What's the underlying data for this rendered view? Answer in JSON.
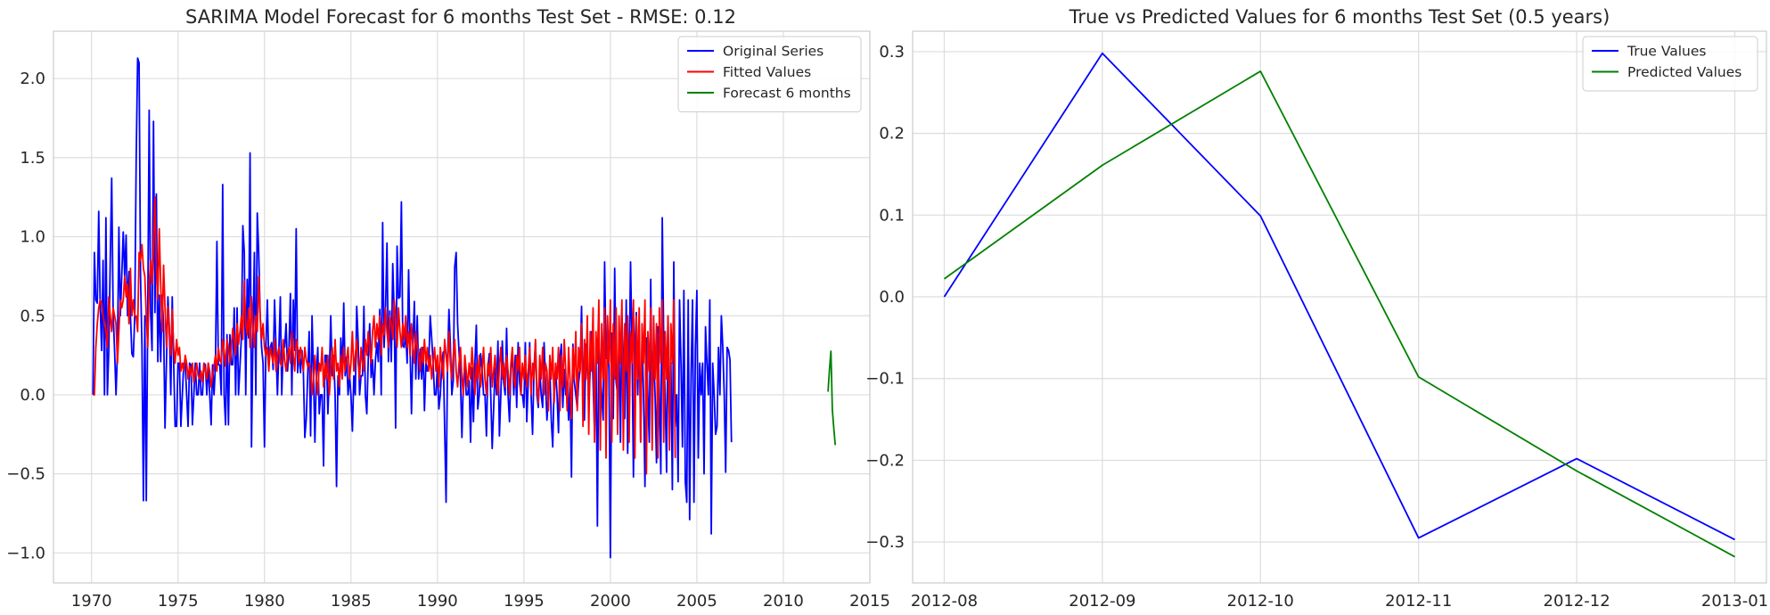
{
  "chart_data": [
    {
      "type": "line",
      "title": "SARIMA Model Forecast for 6 months Test Set - RMSE: 0.12",
      "xlabel": "",
      "ylabel": "",
      "xlim": [
        1967.8,
        2015.0
      ],
      "ylim": [
        -1.19,
        2.3
      ],
      "x_ticks": [
        1970,
        1975,
        1980,
        1985,
        1990,
        1995,
        2000,
        2005,
        2010,
        2015
      ],
      "y_ticks": [
        -1.0,
        -0.5,
        0.0,
        0.5,
        1.0,
        1.5,
        2.0
      ],
      "y_tick_labels": [
        "−1.0",
        "−0.5",
        "0.0",
        "0.5",
        "1.0",
        "1.5",
        "2.0"
      ],
      "grid": true,
      "legend_position": "top-right",
      "series": [
        {
          "name": "Original Series",
          "color": "#0000ff",
          "x_start": 1970.083,
          "x_step": 0.08333,
          "values": [
            0.0,
            0.9,
            0.6,
            0.58,
            1.16,
            0.58,
            0.28,
            0.85,
            0.0,
            1.12,
            0.0,
            0.28,
            0.85,
            1.37,
            0.52,
            0.28,
            0.0,
            0.28,
            1.06,
            0.5,
            0.76,
            1.03,
            0.75,
            1.01,
            0.5,
            0.78,
            0.5,
            0.26,
            0.24,
            0.5,
            1.5,
            2.13,
            2.1,
            0.75,
            0.3,
            -0.67,
            0.5,
            -0.67,
            0.5,
            1.8,
            0.52,
            0.28,
            1.73,
            0.52,
            1.27,
            0.21,
            0.63,
            0.21,
            0.63,
            0.44,
            -0.21,
            0.21,
            0.62,
            0.42,
            0.0,
            0.62,
            0.2,
            -0.2,
            -0.2,
            0.2,
            0.2,
            -0.2,
            0.0,
            0.2,
            0.2,
            0.0,
            -0.2,
            0.2,
            0.19,
            -0.19,
            0.0,
            0.2,
            0.0,
            0.0,
            0.2,
            0.0,
            0.0,
            0.2,
            0.19,
            0.0,
            0.2,
            0.0,
            -0.19,
            0.19,
            0.0,
            0.2,
            0.97,
            0.19,
            0.19,
            0.0,
            1.33,
            0.0,
            -0.19,
            0.38,
            -0.19,
            0.38,
            0.19,
            0.19,
            0.55,
            0.0,
            0.55,
            0.0,
            0.18,
            0.37,
            1.07,
            0.9,
            0.0,
            0.73,
            0.36,
            1.53,
            -0.33,
            0.36,
            0.9,
            0.0,
            1.15,
            0.9,
            0.5,
            0.3,
            0.2,
            -0.33,
            0.3,
            0.6,
            0.2,
            0.3,
            0.33,
            0.16,
            0.6,
            0.3,
            0.0,
            0.29,
            0.62,
            0.0,
            0.3,
            0.3,
            0.45,
            0.15,
            0.3,
            0.64,
            0.0,
            0.6,
            0.28,
            1.05,
            0.14,
            0.28,
            0.14,
            0.28,
            0.14,
            -0.27,
            -0.15,
            0.12,
            0.4,
            -0.26,
            0.5,
            0.13,
            -0.3,
            0.13,
            0.3,
            -0.12,
            0.0,
            0.0,
            -0.45,
            0.25,
            0.25,
            -0.12,
            0.12,
            0.5,
            0.12,
            0.25,
            0.0,
            -0.58,
            0.12,
            0.0,
            0.36,
            0.12,
            0.58,
            0.12,
            0.24,
            0.0,
            0.12,
            0.0,
            -0.23,
            0.12,
            0.0,
            0.56,
            0.34,
            0.0,
            0.12,
            0.12,
            0.56,
            0.0,
            -0.12,
            0.22,
            0.45,
            0.11,
            0.22,
            0.0,
            0.22,
            0.33,
            0.21,
            0.54,
            0.0,
            1.09,
            0.3,
            0.54,
            0.96,
            0.21,
            0.53,
            0.21,
            0.83,
            0.52,
            -0.21,
            0.94,
            0.61,
            0.62,
            1.22,
            0.31,
            0.3,
            0.4,
            0.2,
            0.79,
            0.3,
            -0.12,
            0.32,
            0.59,
            0.1,
            0.5,
            0.1,
            0.29,
            0.1,
            0.3,
            -0.1,
            0.2,
            0.15,
            0.2,
            0.5,
            0.36,
            0.2,
            0.0,
            0.0,
            0.18,
            -0.09,
            0.0,
            0.18,
            0.27,
            -0.2,
            -0.68,
            0.2,
            0.54,
            0.31,
            0.0,
            0.09,
            0.81,
            0.9,
            0.45,
            0.27,
            0.09,
            -0.27,
            0.09,
            0.18,
            0.0,
            0.0,
            0.09,
            -0.3,
            0.17,
            -0.17,
            0.2,
            0.44,
            -0.09,
            0.0,
            0.26,
            0.17,
            0.0,
            0.0,
            -0.26,
            0.17,
            0.26,
            0.0,
            -0.34,
            -0.09,
            0.17,
            0.0,
            0.34,
            -0.26,
            0.0,
            0.34,
            0.08,
            0.0,
            0.42,
            0.0,
            -0.17,
            0.17,
            0.25,
            0.0,
            0.25,
            -0.08,
            0.33,
            0.08,
            0.0,
            0.0,
            -0.08,
            0.33,
            -0.17,
            0.08,
            0.33,
            0.0,
            -0.25,
            0.16,
            0.33,
            0.0,
            -0.08,
            0.16,
            0.0,
            -0.08,
            0.33,
            0.08,
            -0.16,
            0.0,
            0.16,
            -0.16,
            -0.33,
            0.08,
            0.16,
            0.0,
            -0.24,
            0.24,
            0.32,
            -0.08,
            0.16,
            0.0,
            0.08,
            -0.16,
            0.08,
            -0.52,
            0.32,
            0.08,
            0.0,
            -0.08,
            0.08,
            0.16,
            0.56,
            0.0,
            -0.16,
            0.32,
            0.24,
            -0.08,
            0.16,
            0.4,
            0.08,
            -0.24,
            0.31,
            -0.83,
            0.39,
            0.16,
            0.0,
            -0.16,
            0.84,
            0.23,
            0.39,
            0.16,
            -1.03,
            0.39,
            -0.15,
            0.8,
            0.08,
            0.0,
            0.3,
            -0.3,
            0.5,
            0.23,
            -0.15,
            0.6,
            -0.37,
            0.15,
            0.84,
            0.3,
            -0.52,
            0.3,
            0.52,
            0.0,
            0.44,
            -0.29,
            0.36,
            0.0,
            -0.58,
            0.36,
            0.0,
            -0.3,
            0.73,
            -0.14,
            0.29,
            0.0,
            -0.43,
            0.43,
            0.0,
            -0.5,
            1.12,
            0.35,
            0.0,
            -0.49,
            0.49,
            -0.21,
            0.2,
            -0.6,
            0.84,
            -0.2,
            0.0,
            -0.55,
            0.6,
            0.2,
            -0.33,
            0.66,
            -0.55,
            -0.68,
            0.6,
            -0.79,
            0.13,
            0.6,
            -0.68,
            0.3,
            0.66,
            -0.4,
            0.2,
            0.0,
            0.2,
            -0.5,
            0.43,
            0.2,
            0.0,
            0.6,
            -0.88,
            0.2,
            0.0,
            -0.25,
            -0.2,
            0.3,
            0.0,
            0.5,
            0.3,
            0.0,
            -0.49,
            0.3,
            0.28,
            0.22,
            -0.3
          ]
        },
        {
          "name": "Fitted Values",
          "color": "#ff0000",
          "x_start": 1970.083,
          "x_step": 0.08333,
          "values": [
            0.0,
            0.0,
            0.3,
            0.45,
            0.55,
            0.6,
            0.58,
            0.5,
            0.45,
            0.4,
            0.3,
            0.62,
            0.5,
            0.4,
            0.55,
            0.5,
            0.45,
            0.2,
            0.4,
            0.6,
            0.55,
            0.6,
            0.75,
            0.62,
            0.7,
            0.45,
            0.8,
            0.5,
            0.6,
            0.5,
            0.5,
            0.4,
            0.9,
            0.85,
            0.95,
            0.8,
            0.75,
            0.5,
            0.3,
            0.7,
            0.85,
            0.7,
            0.95,
            1.25,
            0.8,
            0.6,
            1.05,
            0.7,
            0.4,
            0.82,
            0.55,
            0.3,
            0.56,
            0.4,
            0.25,
            0.54,
            0.3,
            0.2,
            0.35,
            0.25,
            0.3,
            0.15,
            0.2,
            0.15,
            0.25,
            0.2,
            0.1,
            0.18,
            0.12,
            0.2,
            0.08,
            0.14,
            0.2,
            0.12,
            0.1,
            0.15,
            0.08,
            0.2,
            0.15,
            0.1,
            0.2,
            0.15,
            0.05,
            0.12,
            0.18,
            0.25,
            0.15,
            0.3,
            0.22,
            0.2,
            0.35,
            0.28,
            0.18,
            0.35,
            0.3,
            0.2,
            0.3,
            0.42,
            0.35,
            0.25,
            0.45,
            0.32,
            0.4,
            0.5,
            0.35,
            0.72,
            0.45,
            0.38,
            0.55,
            0.3,
            0.62,
            0.42,
            0.3,
            0.5,
            0.4,
            0.75,
            0.5,
            0.35,
            0.45,
            0.3,
            0.25,
            0.3,
            0.15,
            0.3,
            0.25,
            0.2,
            0.35,
            0.15,
            0.25,
            0.3,
            0.2,
            0.18,
            0.35,
            0.22,
            0.15,
            0.25,
            0.3,
            0.2,
            0.4,
            0.25,
            0.15,
            0.35,
            0.3,
            0.2,
            0.3,
            0.25,
            0.15,
            0.3,
            0.22,
            0.18,
            0.2,
            0.15,
            0.0,
            0.1,
            0.25,
            0.1,
            0.0,
            0.2,
            0.15,
            0.3,
            0.05,
            0.2,
            0.1,
            0.25,
            0.0,
            0.15,
            0.3,
            0.1,
            0.35,
            0.15,
            0.2,
            0.05,
            0.25,
            0.1,
            0.3,
            0.15,
            0.22,
            0.3,
            0.1,
            0.2,
            0.4,
            0.15,
            0.25,
            0.35,
            0.2,
            0.1,
            0.3,
            0.2,
            0.15,
            0.35,
            0.25,
            0.4,
            0.3,
            0.2,
            0.4,
            0.5,
            0.3,
            0.45,
            0.35,
            0.5,
            0.25,
            0.45,
            0.38,
            0.55,
            0.4,
            0.3,
            0.5,
            0.45,
            0.35,
            0.6,
            0.48,
            0.3,
            0.55,
            0.4,
            0.3,
            0.45,
            0.35,
            0.5,
            0.3,
            0.4,
            0.25,
            0.45,
            0.3,
            0.2,
            0.4,
            0.3,
            0.25,
            0.15,
            0.3,
            0.2,
            0.35,
            0.2,
            0.3,
            0.15,
            0.25,
            0.1,
            0.2,
            0.3,
            0.15,
            0.25,
            0.05,
            0.3,
            0.2,
            0.1,
            0.35,
            0.25,
            0.15,
            0.4,
            0.2,
            0.1,
            0.25,
            0.35,
            0.15,
            0.05,
            0.2,
            0.3,
            0.1,
            0.0,
            0.25,
            0.15,
            0.05,
            0.2,
            0.1,
            0.3,
            0.15,
            0.0,
            0.2,
            0.1,
            0.25,
            0.05,
            0.15,
            0.3,
            0.1,
            0.0,
            0.2,
            0.12,
            0.3,
            0.05,
            0.15,
            0.25,
            0.1,
            0.0,
            0.18,
            0.3,
            0.1,
            0.2,
            0.05,
            0.25,
            0.15,
            0.0,
            0.2,
            0.3,
            0.1,
            0.05,
            0.25,
            0.15,
            0.3,
            0.0,
            0.2,
            0.1,
            0.25,
            0.05,
            0.15,
            0.3,
            0.0,
            0.2,
            0.1,
            0.35,
            0.05,
            -0.05,
            0.25,
            0.1,
            0.3,
            0.0,
            0.2,
            0.15,
            -0.1,
            0.25,
            0.1,
            0.3,
            -0.05,
            0.2,
            0.1,
            0.3,
            -0.1,
            0.25,
            0.05,
            0.35,
            0.15,
            -0.1,
            0.3,
            0.1,
            -0.15,
            0.3,
            0.1,
            0.4,
            -0.1,
            0.3,
            0.15,
            0.45,
            -0.2,
            0.35,
            0.1,
            0.5,
            -0.25,
            0.4,
            0.15,
            0.55,
            -0.3,
            0.4,
            0.2,
            0.6,
            -0.35,
            0.45,
            0.1,
            0.55,
            -0.4,
            0.5,
            0.2,
            0.6,
            -0.3,
            0.45,
            0.1,
            0.55,
            -0.25,
            0.5,
            0.2,
            0.6,
            -0.35,
            0.45,
            0.15,
            0.5,
            -0.3,
            0.4,
            0.2,
            0.6,
            -0.4,
            0.5,
            0.1,
            0.55,
            -0.3,
            0.45,
            0.2,
            0.6,
            -0.5,
            0.4,
            0.15,
            0.55,
            -0.35,
            0.5,
            0.1,
            0.45,
            -0.4,
            0.55,
            0.2,
            0.6,
            -0.3,
            0.4,
            0.1,
            0.5,
            -0.35,
            0.45,
            0.2,
            0.6,
            -0.4
          ]
        },
        {
          "name": "Forecast 6 months",
          "color": "#008000",
          "x": [
            2012.583,
            2012.667,
            2012.75,
            2012.833,
            2012.917,
            2013.0
          ],
          "values": [
            0.02,
            0.16,
            0.276,
            -0.098,
            -0.213,
            -0.318
          ]
        }
      ]
    },
    {
      "type": "line",
      "title": "True vs Predicted Values for 6 months Test Set (0.5 years)",
      "xlabel": "",
      "ylabel": "",
      "categories": [
        "2012-08",
        "2012-09",
        "2012-10",
        "2012-11",
        "2012-12",
        "2013-01"
      ],
      "ylim": [
        -0.35,
        0.325
      ],
      "y_ticks": [
        -0.3,
        -0.2,
        -0.1,
        0.0,
        0.1,
        0.2,
        0.3
      ],
      "y_tick_labels": [
        "−0.3",
        "−0.2",
        "−0.1",
        "0.0",
        "0.1",
        "0.2",
        "0.3"
      ],
      "grid": true,
      "legend_position": "top-right",
      "series": [
        {
          "name": "True Values",
          "color": "#0000ff",
          "values": [
            0.0,
            0.298,
            0.099,
            -0.295,
            -0.198,
            -0.297
          ]
        },
        {
          "name": "Predicted Values",
          "color": "#008000",
          "values": [
            0.022,
            0.161,
            0.276,
            -0.098,
            -0.213,
            -0.318
          ]
        }
      ]
    }
  ]
}
